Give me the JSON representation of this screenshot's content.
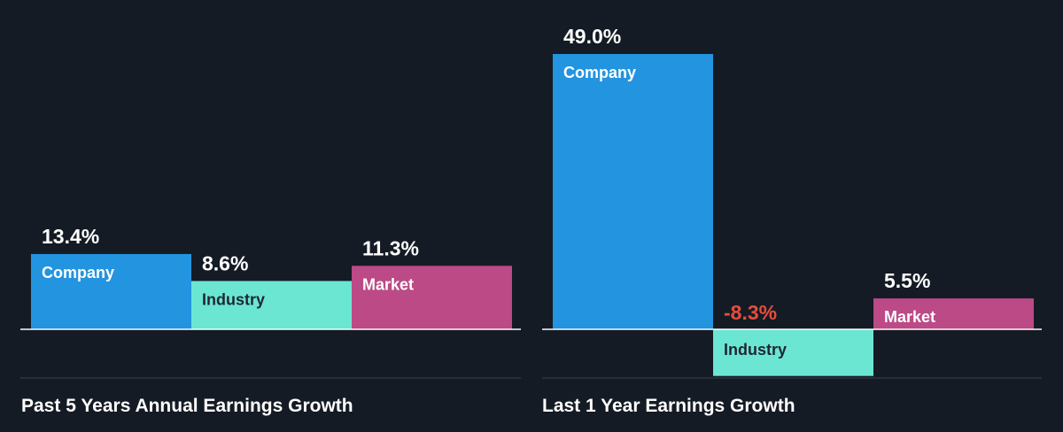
{
  "colors": {
    "background": "#151b24",
    "company": "#2394e0",
    "industry": "#6be6d3",
    "market": "#bb4a87",
    "negative_text": "#e74c3c",
    "text": "#ffffff",
    "text_dark": "#1e2733",
    "axis": "#ffffff",
    "divider": "#3a414b"
  },
  "chart_data": [
    {
      "type": "bar",
      "title": "Past 5 Years Annual Earnings Growth",
      "categories": [
        "Company",
        "Industry",
        "Market"
      ],
      "values": [
        13.4,
        8.6,
        11.3
      ],
      "value_labels": [
        "13.4%",
        "8.6%",
        "11.3%"
      ],
      "unit": "%",
      "ylim": [
        -8.9,
        49.0
      ],
      "grid": false,
      "legend": "none"
    },
    {
      "type": "bar",
      "title": "Last 1 Year Earnings Growth",
      "categories": [
        "Company",
        "Industry",
        "Market"
      ],
      "values": [
        49.0,
        -8.3,
        5.5
      ],
      "value_labels": [
        "49.0%",
        "-8.3%",
        "5.5%"
      ],
      "unit": "%",
      "ylim": [
        -8.9,
        49.0
      ],
      "grid": false,
      "legend": "none"
    }
  ]
}
